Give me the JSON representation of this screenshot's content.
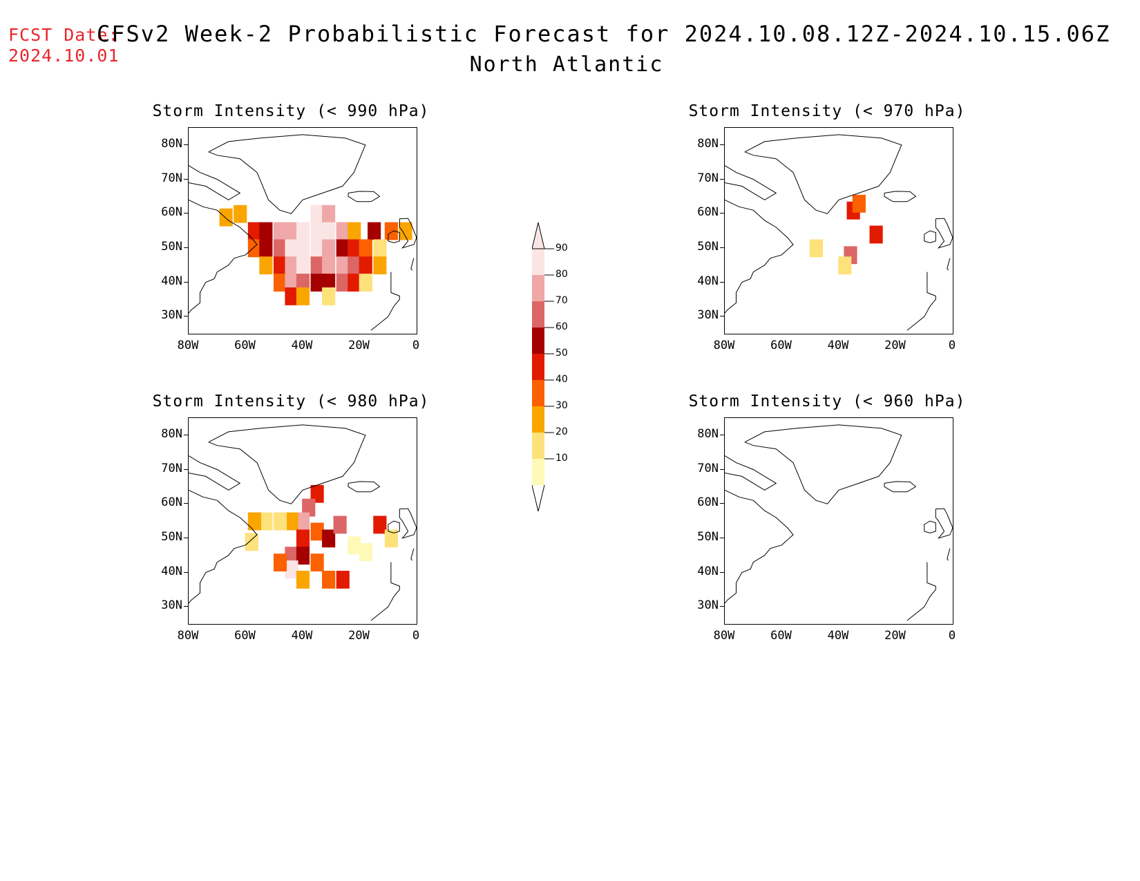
{
  "header": {
    "fcst_label": "FCST Date:",
    "fcst_date": "2024.10.01",
    "title": "CFSv2 Week-2 Probabilistic Forecast for 2024.10.08.12Z-2024.10.15.06Z",
    "subtitle": "North Atlantic"
  },
  "axes": {
    "lat_labels": [
      "80N",
      "70N",
      "60N",
      "50N",
      "40N",
      "30N"
    ],
    "lon_labels": [
      "80W",
      "60W",
      "40W",
      "20W",
      "0"
    ]
  },
  "panels": [
    {
      "id": "p990",
      "title": "Storm Intensity (< 990 hPa)"
    },
    {
      "id": "p970",
      "title": "Storm Intensity (< 970 hPa)"
    },
    {
      "id": "p980",
      "title": "Storm Intensity (< 980 hPa)"
    },
    {
      "id": "p960",
      "title": "Storm Intensity (< 960 hPa)"
    }
  ],
  "colorbar": {
    "levels": [
      "10",
      "20",
      "30",
      "40",
      "50",
      "60",
      "70",
      "80",
      "90"
    ],
    "colors": [
      "#fff9b8",
      "#fde17a",
      "#fba500",
      "#fb6100",
      "#e21a00",
      "#a50000",
      "#dc6666",
      "#f0a7a7",
      "#fbe4e4"
    ]
  },
  "chart_data": {
    "type": "heatmap",
    "region": "North Atlantic",
    "lon_range": [
      -80,
      0
    ],
    "lat_range": [
      25,
      85
    ],
    "units": "probability (%)",
    "panels": [
      {
        "title": "Storm Intensity (< 990 hPa)",
        "cells": [
          {
            "lon": -67,
            "lat": 59,
            "p": 30
          },
          {
            "lon": -62,
            "lat": 60,
            "p": 30
          },
          {
            "lon": -57,
            "lat": 55,
            "p": 50
          },
          {
            "lon": -53,
            "lat": 55,
            "p": 60
          },
          {
            "lon": -48,
            "lat": 55,
            "p": 80
          },
          {
            "lon": -44,
            "lat": 55,
            "p": 80
          },
          {
            "lon": -40,
            "lat": 55,
            "p": 90
          },
          {
            "lon": -35,
            "lat": 55,
            "p": 90
          },
          {
            "lon": -35,
            "lat": 60,
            "p": 90
          },
          {
            "lon": -31,
            "lat": 60,
            "p": 80
          },
          {
            "lon": -31,
            "lat": 55,
            "p": 90
          },
          {
            "lon": -26,
            "lat": 55,
            "p": 80
          },
          {
            "lon": -22,
            "lat": 55,
            "p": 30
          },
          {
            "lon": -15,
            "lat": 55,
            "p": 60
          },
          {
            "lon": -9,
            "lat": 55,
            "p": 40
          },
          {
            "lon": -4,
            "lat": 55,
            "p": 30
          },
          {
            "lon": -57,
            "lat": 50,
            "p": 40
          },
          {
            "lon": -53,
            "lat": 50,
            "p": 60
          },
          {
            "lon": -48,
            "lat": 50,
            "p": 70
          },
          {
            "lon": -44,
            "lat": 50,
            "p": 90
          },
          {
            "lon": -40,
            "lat": 50,
            "p": 90
          },
          {
            "lon": -35,
            "lat": 50,
            "p": 90
          },
          {
            "lon": -31,
            "lat": 50,
            "p": 80
          },
          {
            "lon": -26,
            "lat": 50,
            "p": 60
          },
          {
            "lon": -22,
            "lat": 50,
            "p": 50
          },
          {
            "lon": -18,
            "lat": 50,
            "p": 40
          },
          {
            "lon": -13,
            "lat": 50,
            "p": 20
          },
          {
            "lon": -53,
            "lat": 45,
            "p": 30
          },
          {
            "lon": -48,
            "lat": 45,
            "p": 50
          },
          {
            "lon": -44,
            "lat": 45,
            "p": 80
          },
          {
            "lon": -40,
            "lat": 45,
            "p": 90
          },
          {
            "lon": -35,
            "lat": 45,
            "p": 70
          },
          {
            "lon": -31,
            "lat": 45,
            "p": 80
          },
          {
            "lon": -26,
            "lat": 45,
            "p": 80
          },
          {
            "lon": -22,
            "lat": 45,
            "p": 70
          },
          {
            "lon": -18,
            "lat": 45,
            "p": 50
          },
          {
            "lon": -13,
            "lat": 45,
            "p": 30
          },
          {
            "lon": -48,
            "lat": 40,
            "p": 40
          },
          {
            "lon": -44,
            "lat": 40,
            "p": 80
          },
          {
            "lon": -40,
            "lat": 40,
            "p": 70
          },
          {
            "lon": -35,
            "lat": 40,
            "p": 60
          },
          {
            "lon": -31,
            "lat": 40,
            "p": 60
          },
          {
            "lon": -26,
            "lat": 40,
            "p": 70
          },
          {
            "lon": -22,
            "lat": 40,
            "p": 50
          },
          {
            "lon": -18,
            "lat": 40,
            "p": 20
          },
          {
            "lon": -44,
            "lat": 36,
            "p": 50
          },
          {
            "lon": -40,
            "lat": 36,
            "p": 30
          },
          {
            "lon": -31,
            "lat": 36,
            "p": 20
          }
        ]
      },
      {
        "title": "Storm Intensity (< 970 hPa)",
        "cells": [
          {
            "lon": -35,
            "lat": 61,
            "p": 50
          },
          {
            "lon": -33,
            "lat": 63,
            "p": 40
          },
          {
            "lon": -27,
            "lat": 54,
            "p": 50
          },
          {
            "lon": -36,
            "lat": 48,
            "p": 70
          },
          {
            "lon": -38,
            "lat": 45,
            "p": 20
          },
          {
            "lon": -48,
            "lat": 50,
            "p": 20
          }
        ]
      },
      {
        "title": "Storm Intensity (< 980 hPa)",
        "cells": [
          {
            "lon": -35,
            "lat": 63,
            "p": 50
          },
          {
            "lon": -38,
            "lat": 59,
            "p": 70
          },
          {
            "lon": -40,
            "lat": 55,
            "p": 80
          },
          {
            "lon": -44,
            "lat": 55,
            "p": 30
          },
          {
            "lon": -48,
            "lat": 55,
            "p": 20
          },
          {
            "lon": -53,
            "lat": 55,
            "p": 20
          },
          {
            "lon": -57,
            "lat": 55,
            "p": 30
          },
          {
            "lon": -35,
            "lat": 52,
            "p": 40
          },
          {
            "lon": -40,
            "lat": 50,
            "p": 50
          },
          {
            "lon": -31,
            "lat": 50,
            "p": 60
          },
          {
            "lon": -27,
            "lat": 54,
            "p": 70
          },
          {
            "lon": -44,
            "lat": 45,
            "p": 70
          },
          {
            "lon": -40,
            "lat": 45,
            "p": 60
          },
          {
            "lon": -44,
            "lat": 41,
            "p": 90
          },
          {
            "lon": -48,
            "lat": 43,
            "p": 40
          },
          {
            "lon": -35,
            "lat": 43,
            "p": 40
          },
          {
            "lon": -40,
            "lat": 38,
            "p": 30
          },
          {
            "lon": -31,
            "lat": 38,
            "p": 40
          },
          {
            "lon": -26,
            "lat": 38,
            "p": 50
          },
          {
            "lon": -13,
            "lat": 54,
            "p": 50
          },
          {
            "lon": -9,
            "lat": 50,
            "p": 20
          },
          {
            "lon": -18,
            "lat": 46,
            "p": 10
          },
          {
            "lon": -22,
            "lat": 48,
            "p": 10
          },
          {
            "lon": -58,
            "lat": 49,
            "p": 20
          }
        ]
      },
      {
        "title": "Storm Intensity (< 960 hPa)",
        "cells": []
      }
    ]
  }
}
